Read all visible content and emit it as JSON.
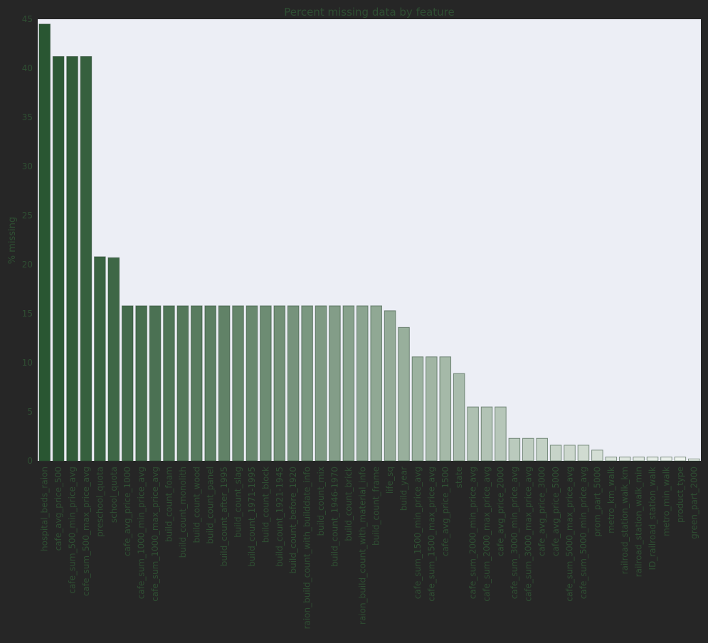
{
  "chart_data": {
    "type": "bar",
    "title": "Percent missing data by feature",
    "xlabel": "",
    "ylabel": "% missing",
    "ylim": [
      0,
      45
    ],
    "yticks": [
      0,
      5,
      10,
      15,
      20,
      25,
      30,
      35,
      40,
      45
    ],
    "grid": false,
    "legend": "none",
    "colors": {
      "figure_background": "#262626",
      "plot_background": "#eceef5",
      "text": "#2f4f33",
      "bar_dark": "#295632",
      "bar_light": "#f2f6f2"
    },
    "categories": [
      "hospital_beds_raion",
      "cafe_avg_price_500",
      "cafe_sum_500_min_price_avg",
      "cafe_sum_500_max_price_avg",
      "preschool_quota",
      "school_quota",
      "cafe_avg_price_1000",
      "cafe_sum_1000_min_price_avg",
      "cafe_sum_1000_max_price_avg",
      "build_count_foam",
      "build_count_monolith",
      "build_count_wood",
      "build_count_panel",
      "build_count_after_1995",
      "build_count_slag",
      "build_count_1971-1995",
      "build_count_block",
      "build_count_1921-1945",
      "build_count_before_1920",
      "raion_build_count_with_builddate_info",
      "build_count_mix",
      "build_count_1946-1970",
      "build_count_brick",
      "raion_build_count_with_material_info",
      "build_count_frame",
      "life_sq",
      "build_year",
      "cafe_sum_1500_min_price_avg",
      "cafe_sum_1500_max_price_avg",
      "cafe_avg_price_1500",
      "state",
      "cafe_sum_2000_min_price_avg",
      "cafe_sum_2000_max_price_avg",
      "cafe_avg_price_2000",
      "cafe_sum_3000_min_price_avg",
      "cafe_sum_3000_max_price_avg",
      "cafe_avg_price_3000",
      "cafe_avg_price_5000",
      "cafe_sum_5000_max_price_avg",
      "cafe_sum_5000_min_price_avg",
      "prom_part_5000",
      "metro_km_walk",
      "railroad_station_walk_km",
      "railroad_station_walk_min",
      "ID_railroad_station_walk",
      "metro_min_walk",
      "product_type",
      "green_part_2000"
    ],
    "values": [
      44.5,
      41.2,
      41.2,
      41.2,
      20.8,
      20.7,
      15.8,
      15.8,
      15.8,
      15.8,
      15.8,
      15.8,
      15.8,
      15.8,
      15.8,
      15.8,
      15.8,
      15.8,
      15.8,
      15.8,
      15.8,
      15.8,
      15.8,
      15.8,
      15.8,
      15.3,
      13.6,
      10.6,
      10.6,
      10.6,
      8.9,
      5.5,
      5.5,
      5.5,
      2.3,
      2.3,
      2.3,
      1.6,
      1.6,
      1.6,
      1.1,
      0.4,
      0.4,
      0.4,
      0.4,
      0.4,
      0.4,
      0.2
    ]
  }
}
